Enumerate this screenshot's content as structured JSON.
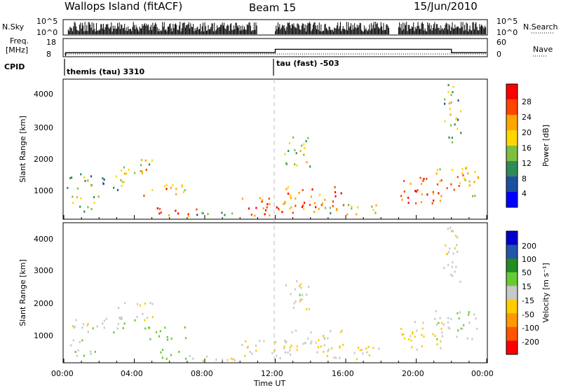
{
  "header": {
    "station": "Wallops Island (fitACF)",
    "beam": "Beam 15",
    "date": "15/Jun/2010"
  },
  "left_labels": {
    "nsky": "N.Sky",
    "freq_line1": "Freq.",
    "freq_line2": "[MHz]",
    "cpid": "CPID"
  },
  "right_labels": {
    "nsearch": "N.Search",
    "nave": "Nave"
  },
  "nsky_ticks": [
    "10^5",
    "10^0"
  ],
  "nsearch_ticks": [
    "10^5",
    "10^0"
  ],
  "freq_ticks": [
    "18",
    "8"
  ],
  "nave_ticks": [
    "60",
    "0"
  ],
  "cpid_segments": [
    {
      "label": "themis (tau) 3310",
      "start_hour": 0.0
    },
    {
      "label": "tau (fast) -503",
      "start_hour": 12.0
    }
  ],
  "x_axis": {
    "label": "Time UT",
    "ticks": [
      "00:00",
      "04:00",
      "08:00",
      "12:00",
      "16:00",
      "20:00",
      "00:00"
    ]
  },
  "power_panel": {
    "ylabel": "Slant Range [km]",
    "yticks": [
      "4000",
      "3000",
      "2000",
      "1000"
    ],
    "colorbar_label": "Power [dB]",
    "colorbar_ticks": [
      "28",
      "24",
      "20",
      "16",
      "12",
      "8",
      "4"
    ],
    "colors": [
      "#0000ff",
      "#1e50a0",
      "#2e8b57",
      "#7fbf3f",
      "#ffd700",
      "#ffa500",
      "#ff4500",
      "#ff0000"
    ]
  },
  "velocity_panel": {
    "ylabel": "Slant Range [km]",
    "yticks": [
      "4000",
      "3000",
      "2000",
      "1000"
    ],
    "colorbar_label": "Velocity [m s⁻¹]",
    "colorbar_ticks": [
      "200",
      "100",
      "50",
      "15",
      "-15",
      "-50",
      "-100",
      "-200"
    ],
    "colors": [
      "#0000cd",
      "#2255aa",
      "#228b22",
      "#66cc33",
      "#c8c8c8",
      "#ffcc00",
      "#ff9900",
      "#ff5500",
      "#ff0000"
    ]
  },
  "chart_data": {
    "type": "heatmap",
    "title": "Wallops Island (fitACF) Beam 15 15/Jun/2010",
    "xlabel": "Time UT",
    "ylabel": "Slant Range [km]",
    "x_range_hours": [
      0,
      24
    ],
    "y_range_km": [
      180,
      4500
    ],
    "power_range_db": [
      0,
      32
    ],
    "velocity_range": [
      -250,
      250
    ],
    "cpid_change_hour": 12.0,
    "freq_mhz": {
      "before_12": 10,
      "after_12": 12,
      "drop_hour": 22.0
    },
    "echo_regions": [
      {
        "t0": 0.0,
        "t1": 3.5,
        "r0": 1100,
        "r1": 1600,
        "power": 12,
        "velocity": 0
      },
      {
        "t0": 0.3,
        "t1": 2.0,
        "r0": 400,
        "r1": 900,
        "power": 14,
        "velocity": 10
      },
      {
        "t0": 3.0,
        "t1": 5.0,
        "r0": 1500,
        "r1": 2100,
        "power": 18,
        "velocity": 0
      },
      {
        "t0": 4.5,
        "t1": 7.0,
        "r0": 900,
        "r1": 1300,
        "power": 22,
        "velocity": 30
      },
      {
        "t0": 5.0,
        "t1": 7.5,
        "r0": 300,
        "r1": 600,
        "power": 28,
        "velocity": 20
      },
      {
        "t0": 7.0,
        "t1": 10.0,
        "r0": 250,
        "r1": 450,
        "power": 14,
        "velocity": -5
      },
      {
        "t0": 10.0,
        "t1": 13.0,
        "r0": 300,
        "r1": 900,
        "power": 26,
        "velocity": -10
      },
      {
        "t0": 12.5,
        "t1": 16.0,
        "r0": 500,
        "r1": 1200,
        "power": 24,
        "velocity": -5
      },
      {
        "t0": 12.5,
        "t1": 14.0,
        "r0": 1800,
        "r1": 2800,
        "power": 16,
        "velocity": 0
      },
      {
        "t0": 14.0,
        "t1": 18.0,
        "r0": 300,
        "r1": 700,
        "power": 18,
        "velocity": -10
      },
      {
        "t0": 19.0,
        "t1": 21.5,
        "r0": 600,
        "r1": 1500,
        "power": 26,
        "velocity": -20
      },
      {
        "t0": 21.0,
        "t1": 23.5,
        "r0": 900,
        "r1": 1800,
        "power": 20,
        "velocity": 5
      },
      {
        "t0": 21.5,
        "t1": 22.5,
        "r0": 2500,
        "r1": 4400,
        "power": 14,
        "velocity": 0
      }
    ]
  }
}
